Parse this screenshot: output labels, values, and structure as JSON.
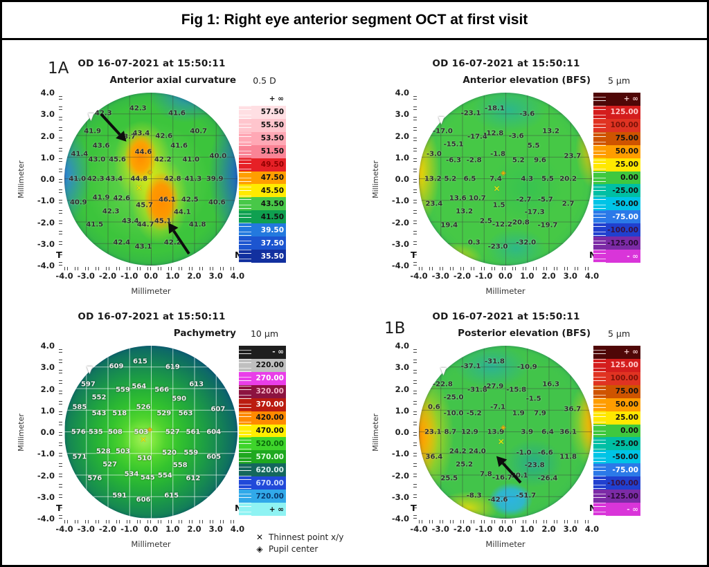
{
  "figure": {
    "title": "Fig 1: Right eye anterior segment OCT at first visit"
  },
  "panel_labels": {
    "a": "1A",
    "b": "1B"
  },
  "legend": {
    "x_symbol": "✕",
    "diamond_symbol": "◈",
    "thinnest": "Thinnest point x/y",
    "pupil": "Pupil center"
  },
  "axis": {
    "unit": "Millimeter",
    "temporal": "T",
    "nasal": "N",
    "ticks_y": [
      "4.0",
      "3.0",
      "2.0",
      "1.0",
      "0.0",
      "-1.0",
      "-2.0",
      "-3.0",
      "-4.0"
    ],
    "ticks_x": [
      "-4.0",
      "-3.0",
      "-2.0",
      "-1.0",
      "0.0",
      "1.0",
      "2.0",
      "3.0",
      "4.0"
    ]
  },
  "scales": {
    "curvature": {
      "rows": [
        {
          "label": "+ ∞",
          "bg": "#ffffff",
          "fg": "#111111"
        },
        {
          "label": "57.50",
          "bg": "#ffdfe3",
          "fg": "#111111"
        },
        {
          "label": "55.50",
          "bg": "#ffc5cd",
          "fg": "#111111"
        },
        {
          "label": "53.50",
          "bg": "#ffa8b5",
          "fg": "#111111"
        },
        {
          "label": "51.50",
          "bg": "#fa8496",
          "fg": "#111111"
        },
        {
          "label": "49.50",
          "bg": "#e62026",
          "fg": "#8f0000"
        },
        {
          "label": "47.50",
          "bg": "#ff9e00",
          "fg": "#111111"
        },
        {
          "label": "45.50",
          "bg": "#ffea00",
          "fg": "#111111"
        },
        {
          "label": "43.50",
          "bg": "#48c848",
          "fg": "#111111"
        },
        {
          "label": "41.50",
          "bg": "#0fa050",
          "fg": "#111111"
        },
        {
          "label": "39.50",
          "bg": "#2379de",
          "fg": "#ffffff"
        },
        {
          "label": "37.50",
          "bg": "#1c55d0",
          "fg": "#ffffff"
        },
        {
          "label": "35.50",
          "bg": "#12309f",
          "fg": "#ffffff"
        }
      ]
    },
    "elevation": {
      "rows": [
        {
          "label": "+ ∞",
          "bg": "#4f0707",
          "fg": "#f2c9c9"
        },
        {
          "label": "125.00",
          "bg": "#d41d1d",
          "fg": "#ffc9c9"
        },
        {
          "label": "100.00",
          "bg": "#e03322",
          "fg": "#7a1208"
        },
        {
          "label": "75.00",
          "bg": "#cf5400",
          "fg": "#111111"
        },
        {
          "label": "50.00",
          "bg": "#ff9d00",
          "fg": "#111111"
        },
        {
          "label": "25.00",
          "bg": "#ffe800",
          "fg": "#111111"
        },
        {
          "label": "0.00",
          "bg": "#3fc83f",
          "fg": "#111111"
        },
        {
          "label": "-25.00",
          "bg": "#00bfa4",
          "fg": "#111111"
        },
        {
          "label": "-50.00",
          "bg": "#00c4e6",
          "fg": "#111111"
        },
        {
          "label": "-75.00",
          "bg": "#2b79e8",
          "fg": "#ffffff"
        },
        {
          "label": "-100.00",
          "bg": "#2040cf",
          "fg": "#3a1040"
        },
        {
          "label": "-125.00",
          "bg": "#7c2ba6",
          "fg": "#2a0a35"
        },
        {
          "label": "- ∞",
          "bg": "#d935d9",
          "fg": "#ffd9ff"
        }
      ]
    },
    "pachymetry": {
      "rows": [
        {
          "label": "- ∞",
          "bg": "#1e1e1e",
          "fg": "#eeeeee"
        },
        {
          "label": "220.00",
          "bg": "#bfbfbf",
          "fg": "#111111"
        },
        {
          "label": "270.00",
          "bg": "#e93ee9",
          "fg": "#ffffff"
        },
        {
          "label": "320.00",
          "bg": "#8c1340",
          "fg": "#f3b3c6"
        },
        {
          "label": "370.00",
          "bg": "#bb1c10",
          "fg": "#ffffff"
        },
        {
          "label": "420.00",
          "bg": "#ff8a00",
          "fg": "#111111"
        },
        {
          "label": "470.00",
          "bg": "#ffee00",
          "fg": "#111111"
        },
        {
          "label": "520.00",
          "bg": "#3ed42b",
          "fg": "#0b6a0b"
        },
        {
          "label": "570.00",
          "bg": "#1fa81f",
          "fg": "#e3ffe3"
        },
        {
          "label": "620.00",
          "bg": "#14675d",
          "fg": "#d8f0ee"
        },
        {
          "label": "670.00",
          "bg": "#2149d9",
          "fg": "#ccdcff"
        },
        {
          "label": "720.00",
          "bg": "#31a9e9",
          "fg": "#0a3a6e"
        },
        {
          "label": "+ ∞",
          "bg": "#8ff3f3",
          "fg": "#111111"
        }
      ]
    }
  },
  "chart_data": [
    {
      "type": "heatmap",
      "id": "anterior-axial-curvature",
      "header": "OD  16-07-2021 at 15:50:11",
      "title": "Anterior axial curvature",
      "unit": "0.5 D",
      "values_unit": "D",
      "xlabel": "Millimeter",
      "ylabel": "Millimeter",
      "xlim": [
        -4.0,
        4.0
      ],
      "ylim": [
        -4.0,
        4.0
      ],
      "grid": true,
      "scale": "curvature",
      "light_labels": false,
      "points": [
        [
          -2.2,
          3.05,
          "42.3"
        ],
        [
          -0.6,
          3.25,
          "42.3"
        ],
        [
          1.2,
          3.05,
          "41.6"
        ],
        [
          -2.7,
          2.2,
          "41.9"
        ],
        [
          -1.1,
          1.95,
          "43.7"
        ],
        [
          -0.45,
          2.1,
          "43.4"
        ],
        [
          0.6,
          2.0,
          "42.6"
        ],
        [
          2.2,
          2.2,
          "40.7"
        ],
        [
          -2.3,
          1.55,
          "43.6"
        ],
        [
          1.3,
          1.55,
          "41.6"
        ],
        [
          -3.3,
          1.15,
          "41.4"
        ],
        [
          -0.35,
          1.25,
          "44.6"
        ],
        [
          3.1,
          1.05,
          "40.0"
        ],
        [
          -2.5,
          0.9,
          "43.0"
        ],
        [
          -1.55,
          0.9,
          "45.6"
        ],
        [
          0.55,
          0.9,
          "42.2"
        ],
        [
          1.85,
          0.9,
          "41.0"
        ],
        [
          -3.4,
          0.0,
          "41.0"
        ],
        [
          -2.55,
          0.0,
          "42.3"
        ],
        [
          -1.7,
          0.0,
          "43.4"
        ],
        [
          -0.55,
          0.0,
          "44.8"
        ],
        [
          1.0,
          0.0,
          "42.8"
        ],
        [
          1.95,
          0.0,
          "41.3"
        ],
        [
          2.95,
          0.0,
          "39.9"
        ],
        [
          -3.35,
          -1.1,
          "40.9"
        ],
        [
          -2.3,
          -0.85,
          "41.9"
        ],
        [
          -1.35,
          -0.9,
          "42.6"
        ],
        [
          -0.3,
          -1.2,
          "45.7"
        ],
        [
          0.75,
          -0.95,
          "46.1"
        ],
        [
          1.8,
          -0.95,
          "42.5"
        ],
        [
          3.05,
          -1.1,
          "40.6"
        ],
        [
          -1.85,
          -1.5,
          "42.3"
        ],
        [
          1.45,
          -1.55,
          "44.1"
        ],
        [
          -2.6,
          -2.1,
          "41.5"
        ],
        [
          -0.95,
          -1.95,
          "43.4"
        ],
        [
          -0.25,
          -2.1,
          "44.7"
        ],
        [
          0.55,
          -1.95,
          "45.1"
        ],
        [
          2.15,
          -2.1,
          "41.8"
        ],
        [
          -1.35,
          -2.95,
          "42.4"
        ],
        [
          -0.35,
          -3.15,
          "43.1"
        ],
        [
          1.0,
          -2.95,
          "42.2"
        ]
      ],
      "markers": {
        "thinnest": [
          -0.55,
          -0.4
        ],
        "pupil": [
          -0.05,
          0.3
        ]
      },
      "arrows": [
        [
          -2.3,
          3.0,
          -1.2,
          1.8
        ],
        [
          1.75,
          -3.45,
          0.85,
          -2.1
        ]
      ],
      "cursor": [
        -2.85,
        3.1
      ]
    },
    {
      "type": "heatmap",
      "id": "anterior-elevation-bfs",
      "header": "OD  16-07-2021 at 15:50:11",
      "title": "Anterior elevation (BFS)",
      "unit": "5 µm",
      "values_unit": "µm",
      "xlabel": "Millimeter",
      "ylabel": "Millimeter",
      "xlim": [
        -4.0,
        4.0
      ],
      "ylim": [
        -4.0,
        4.0
      ],
      "grid": true,
      "scale": "elevation",
      "light_labels": false,
      "points": [
        [
          -1.6,
          3.05,
          "-23.1"
        ],
        [
          -0.5,
          3.25,
          "-18.1"
        ],
        [
          1.0,
          3.0,
          "-3.6"
        ],
        [
          -2.9,
          2.2,
          "-17.0"
        ],
        [
          -1.3,
          1.95,
          "-17.4"
        ],
        [
          -0.55,
          2.1,
          "-12.8"
        ],
        [
          0.5,
          2.0,
          "-3.6"
        ],
        [
          2.1,
          2.2,
          "13.2"
        ],
        [
          -2.4,
          1.6,
          "-15.1"
        ],
        [
          1.3,
          1.55,
          "5.5"
        ],
        [
          -3.3,
          1.15,
          "-3.0"
        ],
        [
          -0.35,
          1.15,
          "-1.8"
        ],
        [
          3.1,
          1.05,
          "23.7"
        ],
        [
          -2.4,
          0.85,
          "-6.3"
        ],
        [
          -1.45,
          0.85,
          "-2.8"
        ],
        [
          0.6,
          0.85,
          "5.2"
        ],
        [
          1.6,
          0.85,
          "9.6"
        ],
        [
          -3.35,
          0.0,
          "13.2"
        ],
        [
          -2.55,
          0.0,
          "5.2"
        ],
        [
          -1.65,
          0.0,
          "6.5"
        ],
        [
          -0.45,
          0.0,
          "7.4"
        ],
        [
          1.0,
          0.0,
          "4.3"
        ],
        [
          1.95,
          0.0,
          "5.5"
        ],
        [
          2.9,
          0.0,
          "20.2"
        ],
        [
          -3.3,
          -1.15,
          "23.4"
        ],
        [
          -2.2,
          -0.9,
          "13.6"
        ],
        [
          -1.3,
          -0.9,
          "10.7"
        ],
        [
          -0.3,
          -1.2,
          "1.5"
        ],
        [
          0.85,
          -0.95,
          "-2.7"
        ],
        [
          1.85,
          -0.95,
          "-5.7"
        ],
        [
          2.9,
          -1.15,
          "2.7"
        ],
        [
          -1.9,
          -1.5,
          "13.2"
        ],
        [
          1.35,
          -1.55,
          "-17.3"
        ],
        [
          -2.6,
          -2.15,
          "19.4"
        ],
        [
          -0.9,
          -1.95,
          "2.5"
        ],
        [
          -0.15,
          -2.1,
          "-12.2"
        ],
        [
          0.65,
          -2.0,
          "-20.8"
        ],
        [
          1.95,
          -2.15,
          "-19.7"
        ],
        [
          -1.45,
          -2.95,
          "0.3"
        ],
        [
          -0.35,
          -3.15,
          "-23.0"
        ],
        [
          0.95,
          -2.95,
          "-32.0"
        ]
      ],
      "markers": {
        "thinnest": [
          -0.4,
          -0.45
        ],
        "pupil": [
          -0.1,
          0.25
        ]
      },
      "arrows": [],
      "cursor": [
        -3.05,
        2.95
      ]
    },
    {
      "type": "heatmap",
      "id": "pachymetry",
      "header": "OD  16-07-2021 at 15:50:11",
      "title": "Pachymetry",
      "unit": "10 µm",
      "values_unit": "µm",
      "xlabel": "Millimeter",
      "ylabel": "Millimeter",
      "xlim": [
        -4.0,
        4.0
      ],
      "ylim": [
        -4.0,
        4.0
      ],
      "grid": true,
      "scale": "pachymetry",
      "light_labels": true,
      "points": [
        [
          -1.6,
          3.05,
          "609"
        ],
        [
          -0.5,
          3.25,
          "615"
        ],
        [
          1.0,
          3.0,
          "619"
        ],
        [
          -2.9,
          2.2,
          "597"
        ],
        [
          -1.3,
          1.95,
          "559"
        ],
        [
          -0.55,
          2.1,
          "564"
        ],
        [
          0.5,
          1.95,
          "566"
        ],
        [
          2.1,
          2.2,
          "613"
        ],
        [
          -2.4,
          1.6,
          "552"
        ],
        [
          1.3,
          1.55,
          "590"
        ],
        [
          -3.3,
          1.15,
          "585"
        ],
        [
          -0.35,
          1.15,
          "526"
        ],
        [
          3.1,
          1.05,
          "607"
        ],
        [
          -2.4,
          0.85,
          "543"
        ],
        [
          -1.45,
          0.85,
          "518"
        ],
        [
          0.6,
          0.85,
          "529"
        ],
        [
          1.6,
          0.85,
          "563"
        ],
        [
          -3.35,
          0.0,
          "576"
        ],
        [
          -2.55,
          0.0,
          "535"
        ],
        [
          -1.65,
          0.0,
          "508"
        ],
        [
          -0.45,
          0.0,
          "503"
        ],
        [
          1.0,
          0.0,
          "527"
        ],
        [
          1.95,
          0.0,
          "561"
        ],
        [
          2.9,
          0.0,
          "604"
        ],
        [
          -3.3,
          -1.15,
          "571"
        ],
        [
          -2.2,
          -0.9,
          "528"
        ],
        [
          -1.3,
          -0.9,
          "503"
        ],
        [
          -0.3,
          -1.2,
          "510"
        ],
        [
          0.85,
          -0.95,
          "520"
        ],
        [
          1.85,
          -0.95,
          "559"
        ],
        [
          2.9,
          -1.15,
          "605"
        ],
        [
          -1.9,
          -1.5,
          "527"
        ],
        [
          1.35,
          -1.55,
          "558"
        ],
        [
          -2.6,
          -2.15,
          "576"
        ],
        [
          -0.9,
          -1.95,
          "534"
        ],
        [
          -0.15,
          -2.1,
          "545"
        ],
        [
          0.65,
          -2.0,
          "554"
        ],
        [
          1.95,
          -2.15,
          "612"
        ],
        [
          -1.45,
          -2.95,
          "591"
        ],
        [
          -0.35,
          -3.15,
          "606"
        ],
        [
          0.95,
          -2.95,
          "615"
        ]
      ],
      "markers": {
        "thinnest": [
          -0.35,
          -0.35
        ],
        "pupil": [
          -0.05,
          0.1
        ]
      },
      "arrows": [],
      "cursor": [
        -2.9,
        3.1
      ]
    },
    {
      "type": "heatmap",
      "id": "posterior-elevation-bfs",
      "header": "OD  16-07-2021 at 15:50:11",
      "title": "Posterior elevation (BFS)",
      "unit": "5 µm",
      "values_unit": "µm",
      "xlabel": "Millimeter",
      "ylabel": "Millimeter",
      "xlim": [
        -4.0,
        4.0
      ],
      "ylim": [
        -4.0,
        4.0
      ],
      "grid": true,
      "scale": "elevation",
      "light_labels": false,
      "points": [
        [
          -1.6,
          3.05,
          "-37.1"
        ],
        [
          -0.5,
          3.25,
          "-31.8"
        ],
        [
          1.0,
          3.0,
          "-10.9"
        ],
        [
          -2.9,
          2.2,
          "-22.8"
        ],
        [
          -1.3,
          1.95,
          "-31.8"
        ],
        [
          -0.55,
          2.1,
          "-27.9"
        ],
        [
          0.5,
          1.95,
          "-15.8"
        ],
        [
          2.1,
          2.2,
          "16.3"
        ],
        [
          -2.4,
          1.6,
          "-25.0"
        ],
        [
          1.3,
          1.55,
          "-1.5"
        ],
        [
          -3.3,
          1.15,
          "0.6"
        ],
        [
          -0.35,
          1.15,
          "-7.1"
        ],
        [
          3.1,
          1.05,
          "36.7"
        ],
        [
          -2.4,
          0.85,
          "-10.0"
        ],
        [
          -1.45,
          0.85,
          "-5.2"
        ],
        [
          0.6,
          0.85,
          "1.9"
        ],
        [
          1.6,
          0.85,
          "7.9"
        ],
        [
          -3.35,
          0.0,
          "23.1"
        ],
        [
          -2.55,
          0.0,
          "8.7"
        ],
        [
          -1.65,
          0.0,
          "12.9"
        ],
        [
          -0.45,
          0.0,
          "13.9"
        ],
        [
          1.0,
          0.0,
          "3.9"
        ],
        [
          1.95,
          0.0,
          "6.4"
        ],
        [
          2.9,
          0.0,
          "36.1"
        ],
        [
          -3.3,
          -1.15,
          "36.4"
        ],
        [
          -2.2,
          -0.9,
          "24.2"
        ],
        [
          -1.3,
          -0.9,
          "24.0"
        ],
        [
          0.85,
          -0.95,
          "-1.0"
        ],
        [
          1.85,
          -0.95,
          "-6.6"
        ],
        [
          2.9,
          -1.15,
          "11.8"
        ],
        [
          -1.9,
          -1.5,
          "25.2"
        ],
        [
          1.35,
          -1.55,
          "-23.8"
        ],
        [
          -2.6,
          -2.15,
          "25.5"
        ],
        [
          -0.9,
          -1.95,
          "7.8"
        ],
        [
          -0.15,
          -2.1,
          "-16.7"
        ],
        [
          0.65,
          -2.0,
          "30.1"
        ],
        [
          1.95,
          -2.15,
          "-26.4"
        ],
        [
          -1.45,
          -2.95,
          "-8.3"
        ],
        [
          -0.35,
          -3.15,
          "-42.6"
        ],
        [
          0.95,
          -2.95,
          "-51.7"
        ]
      ],
      "markers": {
        "thinnest": [
          -0.2,
          -0.45
        ],
        "pupil": [
          -0.1,
          0.2
        ]
      },
      "arrows": [
        [
          0.7,
          -2.35,
          -0.35,
          -1.2
        ]
      ],
      "cursor": [
        -2.95,
        3.05
      ]
    }
  ]
}
